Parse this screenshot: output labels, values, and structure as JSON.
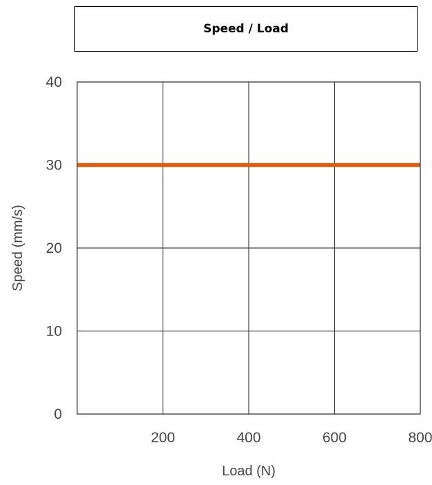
{
  "chart_data": {
    "type": "line",
    "title": "Speed / Load",
    "xlabel": "Load (N)",
    "ylabel": "Speed (mm/s)",
    "x_ticks": [
      200,
      400,
      600,
      800
    ],
    "y_ticks": [
      0,
      10,
      20,
      30,
      40
    ],
    "xlim": [
      0,
      800
    ],
    "ylim": [
      0,
      40
    ],
    "grid": true,
    "series": [
      {
        "x": [
          0,
          800
        ],
        "y": [
          30,
          30
        ],
        "color": "#d2601a"
      }
    ]
  },
  "colors": {
    "grid": "#444444",
    "frame": "#444444",
    "text": "#444444"
  }
}
